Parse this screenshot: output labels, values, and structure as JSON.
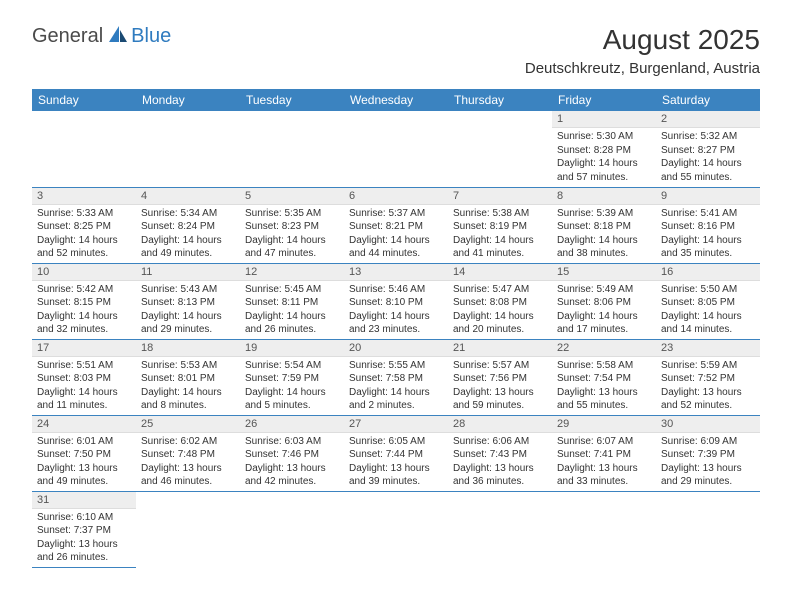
{
  "brand": {
    "text_general": "General",
    "text_blue": "Blue",
    "logo_color_blue": "#2f7bbf",
    "logo_color_dark": "#1a4a73"
  },
  "header": {
    "month_title": "August 2025",
    "location": "Deutschkreutz, Burgenland, Austria"
  },
  "style": {
    "header_bg": "#3b83c0",
    "header_text": "#ffffff",
    "daynum_bg": "#eeeeee",
    "row_border": "#3b83c0",
    "body_text": "#333333",
    "font_family": "Arial",
    "title_fontsize": 28,
    "location_fontsize": 15,
    "weekday_fontsize": 12,
    "cell_fontsize": 10
  },
  "weekdays": [
    "Sunday",
    "Monday",
    "Tuesday",
    "Wednesday",
    "Thursday",
    "Friday",
    "Saturday"
  ],
  "weeks": [
    [
      null,
      null,
      null,
      null,
      null,
      {
        "n": "1",
        "sr": "Sunrise: 5:30 AM",
        "ss": "Sunset: 8:28 PM",
        "d1": "Daylight: 14 hours",
        "d2": "and 57 minutes."
      },
      {
        "n": "2",
        "sr": "Sunrise: 5:32 AM",
        "ss": "Sunset: 8:27 PM",
        "d1": "Daylight: 14 hours",
        "d2": "and 55 minutes."
      }
    ],
    [
      {
        "n": "3",
        "sr": "Sunrise: 5:33 AM",
        "ss": "Sunset: 8:25 PM",
        "d1": "Daylight: 14 hours",
        "d2": "and 52 minutes."
      },
      {
        "n": "4",
        "sr": "Sunrise: 5:34 AM",
        "ss": "Sunset: 8:24 PM",
        "d1": "Daylight: 14 hours",
        "d2": "and 49 minutes."
      },
      {
        "n": "5",
        "sr": "Sunrise: 5:35 AM",
        "ss": "Sunset: 8:23 PM",
        "d1": "Daylight: 14 hours",
        "d2": "and 47 minutes."
      },
      {
        "n": "6",
        "sr": "Sunrise: 5:37 AM",
        "ss": "Sunset: 8:21 PM",
        "d1": "Daylight: 14 hours",
        "d2": "and 44 minutes."
      },
      {
        "n": "7",
        "sr": "Sunrise: 5:38 AM",
        "ss": "Sunset: 8:19 PM",
        "d1": "Daylight: 14 hours",
        "d2": "and 41 minutes."
      },
      {
        "n": "8",
        "sr": "Sunrise: 5:39 AM",
        "ss": "Sunset: 8:18 PM",
        "d1": "Daylight: 14 hours",
        "d2": "and 38 minutes."
      },
      {
        "n": "9",
        "sr": "Sunrise: 5:41 AM",
        "ss": "Sunset: 8:16 PM",
        "d1": "Daylight: 14 hours",
        "d2": "and 35 minutes."
      }
    ],
    [
      {
        "n": "10",
        "sr": "Sunrise: 5:42 AM",
        "ss": "Sunset: 8:15 PM",
        "d1": "Daylight: 14 hours",
        "d2": "and 32 minutes."
      },
      {
        "n": "11",
        "sr": "Sunrise: 5:43 AM",
        "ss": "Sunset: 8:13 PM",
        "d1": "Daylight: 14 hours",
        "d2": "and 29 minutes."
      },
      {
        "n": "12",
        "sr": "Sunrise: 5:45 AM",
        "ss": "Sunset: 8:11 PM",
        "d1": "Daylight: 14 hours",
        "d2": "and 26 minutes."
      },
      {
        "n": "13",
        "sr": "Sunrise: 5:46 AM",
        "ss": "Sunset: 8:10 PM",
        "d1": "Daylight: 14 hours",
        "d2": "and 23 minutes."
      },
      {
        "n": "14",
        "sr": "Sunrise: 5:47 AM",
        "ss": "Sunset: 8:08 PM",
        "d1": "Daylight: 14 hours",
        "d2": "and 20 minutes."
      },
      {
        "n": "15",
        "sr": "Sunrise: 5:49 AM",
        "ss": "Sunset: 8:06 PM",
        "d1": "Daylight: 14 hours",
        "d2": "and 17 minutes."
      },
      {
        "n": "16",
        "sr": "Sunrise: 5:50 AM",
        "ss": "Sunset: 8:05 PM",
        "d1": "Daylight: 14 hours",
        "d2": "and 14 minutes."
      }
    ],
    [
      {
        "n": "17",
        "sr": "Sunrise: 5:51 AM",
        "ss": "Sunset: 8:03 PM",
        "d1": "Daylight: 14 hours",
        "d2": "and 11 minutes."
      },
      {
        "n": "18",
        "sr": "Sunrise: 5:53 AM",
        "ss": "Sunset: 8:01 PM",
        "d1": "Daylight: 14 hours",
        "d2": "and 8 minutes."
      },
      {
        "n": "19",
        "sr": "Sunrise: 5:54 AM",
        "ss": "Sunset: 7:59 PM",
        "d1": "Daylight: 14 hours",
        "d2": "and 5 minutes."
      },
      {
        "n": "20",
        "sr": "Sunrise: 5:55 AM",
        "ss": "Sunset: 7:58 PM",
        "d1": "Daylight: 14 hours",
        "d2": "and 2 minutes."
      },
      {
        "n": "21",
        "sr": "Sunrise: 5:57 AM",
        "ss": "Sunset: 7:56 PM",
        "d1": "Daylight: 13 hours",
        "d2": "and 59 minutes."
      },
      {
        "n": "22",
        "sr": "Sunrise: 5:58 AM",
        "ss": "Sunset: 7:54 PM",
        "d1": "Daylight: 13 hours",
        "d2": "and 55 minutes."
      },
      {
        "n": "23",
        "sr": "Sunrise: 5:59 AM",
        "ss": "Sunset: 7:52 PM",
        "d1": "Daylight: 13 hours",
        "d2": "and 52 minutes."
      }
    ],
    [
      {
        "n": "24",
        "sr": "Sunrise: 6:01 AM",
        "ss": "Sunset: 7:50 PM",
        "d1": "Daylight: 13 hours",
        "d2": "and 49 minutes."
      },
      {
        "n": "25",
        "sr": "Sunrise: 6:02 AM",
        "ss": "Sunset: 7:48 PM",
        "d1": "Daylight: 13 hours",
        "d2": "and 46 minutes."
      },
      {
        "n": "26",
        "sr": "Sunrise: 6:03 AM",
        "ss": "Sunset: 7:46 PM",
        "d1": "Daylight: 13 hours",
        "d2": "and 42 minutes."
      },
      {
        "n": "27",
        "sr": "Sunrise: 6:05 AM",
        "ss": "Sunset: 7:44 PM",
        "d1": "Daylight: 13 hours",
        "d2": "and 39 minutes."
      },
      {
        "n": "28",
        "sr": "Sunrise: 6:06 AM",
        "ss": "Sunset: 7:43 PM",
        "d1": "Daylight: 13 hours",
        "d2": "and 36 minutes."
      },
      {
        "n": "29",
        "sr": "Sunrise: 6:07 AM",
        "ss": "Sunset: 7:41 PM",
        "d1": "Daylight: 13 hours",
        "d2": "and 33 minutes."
      },
      {
        "n": "30",
        "sr": "Sunrise: 6:09 AM",
        "ss": "Sunset: 7:39 PM",
        "d1": "Daylight: 13 hours",
        "d2": "and 29 minutes."
      }
    ],
    [
      {
        "n": "31",
        "sr": "Sunrise: 6:10 AM",
        "ss": "Sunset: 7:37 PM",
        "d1": "Daylight: 13 hours",
        "d2": "and 26 minutes."
      },
      null,
      null,
      null,
      null,
      null,
      null
    ]
  ]
}
